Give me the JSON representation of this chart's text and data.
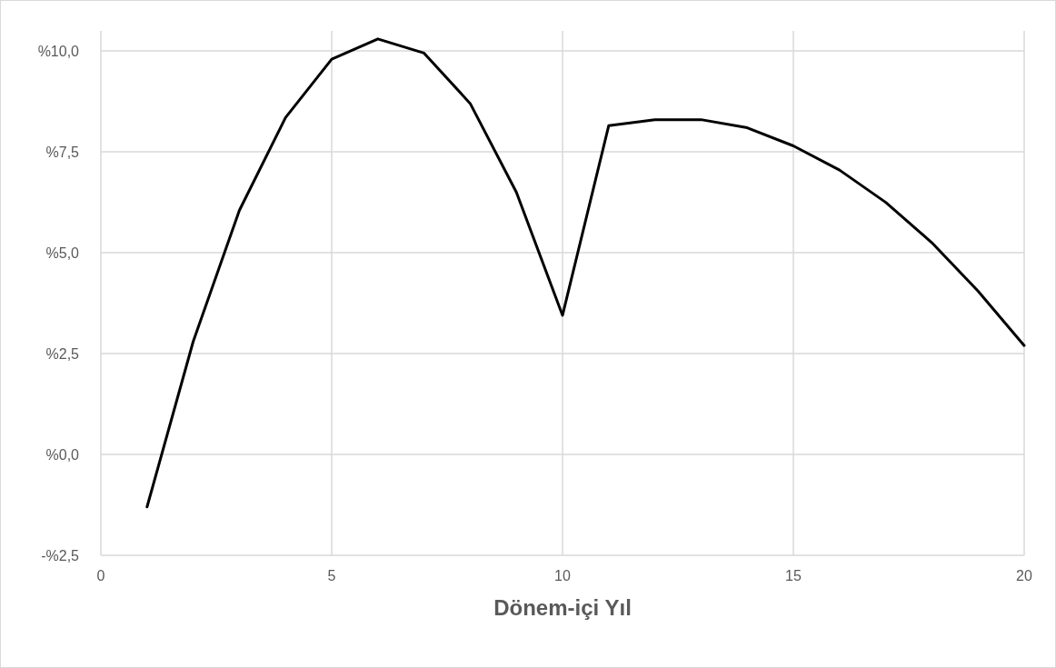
{
  "chart_data": {
    "type": "line",
    "xlabel": "Dönem-içi Yıl",
    "x": [
      1,
      2,
      3,
      4,
      5,
      6,
      7,
      8,
      9,
      10,
      11,
      12,
      13,
      14,
      15,
      16,
      17,
      18,
      19,
      20
    ],
    "series": [
      {
        "color": "#000000",
        "values": [
          -1.3,
          2.8,
          6.05,
          8.35,
          9.8,
          10.3,
          9.95,
          8.7,
          6.5,
          3.45,
          8.15,
          8.3,
          8.3,
          8.1,
          7.65,
          7.05,
          6.25,
          5.25,
          4.05,
          2.7
        ]
      }
    ],
    "xlim": [
      0,
      20
    ],
    "xticks": [
      0,
      5,
      10,
      15,
      20
    ],
    "ylim": [
      -2.5,
      10.5
    ],
    "yticks": [
      {
        "value": -2.5,
        "label": "-%2,5"
      },
      {
        "value": 0,
        "label": "%0,0"
      },
      {
        "value": 2.5,
        "label": "%2,5"
      },
      {
        "value": 5,
        "label": "%5,0"
      },
      {
        "value": 7.5,
        "label": "%7,5"
      },
      {
        "value": 10,
        "label": "%10,0"
      }
    ],
    "grid": true,
    "marker": "none",
    "line_style": "solid"
  }
}
